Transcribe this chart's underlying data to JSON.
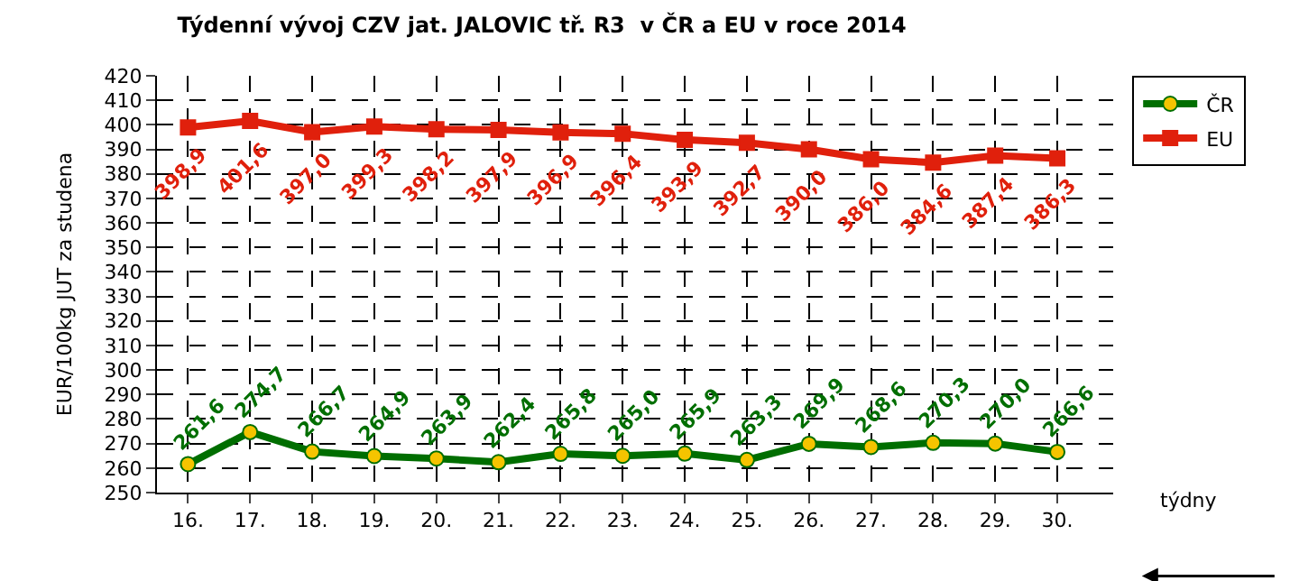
{
  "chart_data": {
    "type": "line",
    "title": "Týdenní vývoj CZV jat. JALOVIC tř. R3  v ČR a EU v roce 2014",
    "ylabel": "EUR/100kg JUT za studena",
    "categories": [
      "16.",
      "17.",
      "18.",
      "19.",
      "20.",
      "21.",
      "22.",
      "23.",
      "24.",
      "25.",
      "26.",
      "27.",
      "28.",
      "29.",
      "30."
    ],
    "series": [
      {
        "name": "ČR",
        "color": "#006e00",
        "marker": "circle",
        "values": [
          261.6,
          274.7,
          266.7,
          264.9,
          263.9,
          262.4,
          265.8,
          265.0,
          265.9,
          263.3,
          269.9,
          268.6,
          270.3,
          270.0,
          266.6
        ],
        "value_labels": [
          "261,6",
          "274,7",
          "266,7",
          "264,9",
          "263,9",
          "262,4",
          "265,8",
          "265,0",
          "265,9",
          "263,3",
          "269,9",
          "268,6",
          "270,3",
          "270,0",
          "266,6"
        ]
      },
      {
        "name": "EU",
        "color": "#e0200c",
        "marker": "square",
        "values": [
          398.9,
          401.6,
          397.0,
          399.3,
          398.2,
          397.9,
          396.9,
          396.4,
          393.9,
          392.7,
          390.0,
          386.0,
          384.6,
          387.4,
          386.3
        ],
        "value_labels": [
          "398,9",
          "401,6",
          "397,0",
          "399,3",
          "398,2",
          "397,9",
          "396,9",
          "396,4",
          "393,9",
          "392,7",
          "390,0",
          "386,0",
          "384,6",
          "387,4",
          "386,3"
        ]
      }
    ],
    "ylim": [
      250,
      420
    ],
    "yticks": [
      250,
      260,
      270,
      280,
      290,
      300,
      310,
      320,
      330,
      340,
      350,
      360,
      370,
      380,
      390,
      400,
      410,
      420
    ],
    "grid": true,
    "legend": "right",
    "line_style": "solid",
    "annotations": [
      "týdny"
    ]
  }
}
